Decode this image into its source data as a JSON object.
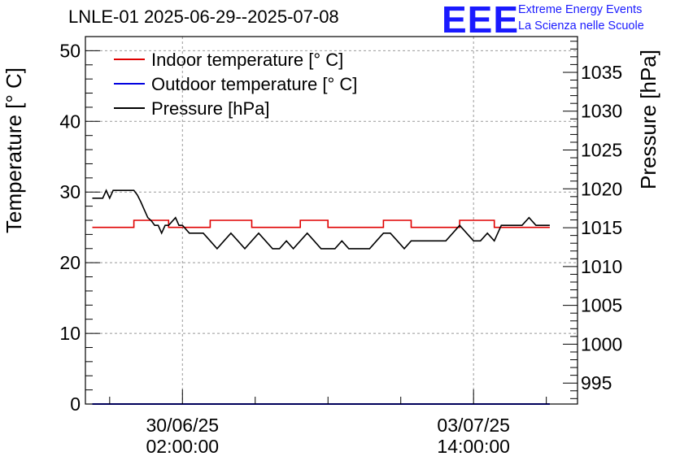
{
  "title": "LNLE-01 2025-06-29--2025-07-08",
  "logo": {
    "mark": "EEE",
    "line1": "Extreme Energy Events",
    "line2": "La Scienza nelle Scuole"
  },
  "colors": {
    "indoor": "#e00000",
    "outdoor": "#0000e0",
    "pressure": "#000000",
    "logo": "#1a1aff"
  },
  "chart_data": {
    "type": "line",
    "ylabel": "Temperature [° C]",
    "y2label": "Pressure [hPa]",
    "ylim": [
      0,
      52
    ],
    "y2lim": [
      992.3,
      1039.6
    ],
    "y_ticks": [
      "0",
      "10",
      "20",
      "30",
      "40",
      "50"
    ],
    "y2_ticks": [
      "995",
      "1000",
      "1005",
      "1010",
      "1015",
      "1020",
      "1025",
      "1030",
      "1035"
    ],
    "x_ticks": [
      {
        "date": "30/06/25",
        "time": "02:00:00",
        "hours": 26
      },
      {
        "date": "03/07/25",
        "time": "14:00:00",
        "hours": 110
      }
    ],
    "xlim_hours": [
      -2,
      140
    ],
    "grid": true,
    "legend_position": "top-left",
    "series": [
      {
        "name": "Indoor temperature [° C]",
        "axis": "left",
        "x_hours": [
          0,
          12,
          12,
          22,
          22,
          34,
          34,
          46,
          46,
          60,
          60,
          68,
          68,
          84,
          84,
          92,
          92,
          106,
          106,
          116,
          116,
          132
        ],
        "values": [
          25,
          25,
          26,
          26,
          25,
          25,
          26,
          26,
          25,
          25,
          26,
          26,
          25,
          25,
          26,
          26,
          25,
          25,
          26,
          26,
          25,
          25
        ]
      },
      {
        "name": "Outdoor temperature [° C]",
        "axis": "left",
        "x_hours": [
          0,
          132
        ],
        "values": [
          0,
          0
        ]
      },
      {
        "name": "Pressure [hPa]",
        "axis": "right",
        "x_hours": [
          0,
          3,
          4,
          5,
          6,
          7,
          12,
          13,
          14,
          15,
          16,
          17,
          18,
          19,
          20,
          21,
          22,
          24,
          25,
          26,
          28,
          30,
          32,
          34,
          36,
          38,
          40,
          42,
          44,
          46,
          48,
          50,
          52,
          54,
          56,
          58,
          60,
          62,
          64,
          66,
          68,
          70,
          72,
          74,
          76,
          78,
          80,
          82,
          84,
          86,
          88,
          90,
          92,
          94,
          96,
          98,
          100,
          102,
          104,
          106,
          108,
          110,
          112,
          114,
          116,
          118,
          120,
          122,
          124,
          126,
          128,
          130,
          132
        ],
        "values": [
          1018.8,
          1018.8,
          1019.8,
          1018.8,
          1019.8,
          1019.8,
          1019.8,
          1019.2,
          1018.3,
          1017.3,
          1016.3,
          1015.9,
          1015.3,
          1015.3,
          1014.3,
          1015.3,
          1015.3,
          1016.3,
          1015.3,
          1015.3,
          1014.3,
          1014.3,
          1014.3,
          1013.3,
          1012.3,
          1013.3,
          1014.3,
          1013.3,
          1012.3,
          1013.3,
          1014.3,
          1013.3,
          1012.3,
          1012.3,
          1013.3,
          1012.3,
          1013.3,
          1014.3,
          1013.3,
          1012.3,
          1012.3,
          1012.3,
          1013.3,
          1012.3,
          1012.3,
          1012.3,
          1012.3,
          1013.3,
          1014.3,
          1014.3,
          1013.3,
          1012.3,
          1013.3,
          1013.3,
          1013.3,
          1013.3,
          1013.3,
          1013.3,
          1014.3,
          1015.3,
          1014.3,
          1013.3,
          1013.3,
          1014.3,
          1013.3,
          1015.3,
          1015.3,
          1015.3,
          1015.3,
          1016.3,
          1015.3,
          1015.3,
          1015.3
        ]
      }
    ]
  }
}
